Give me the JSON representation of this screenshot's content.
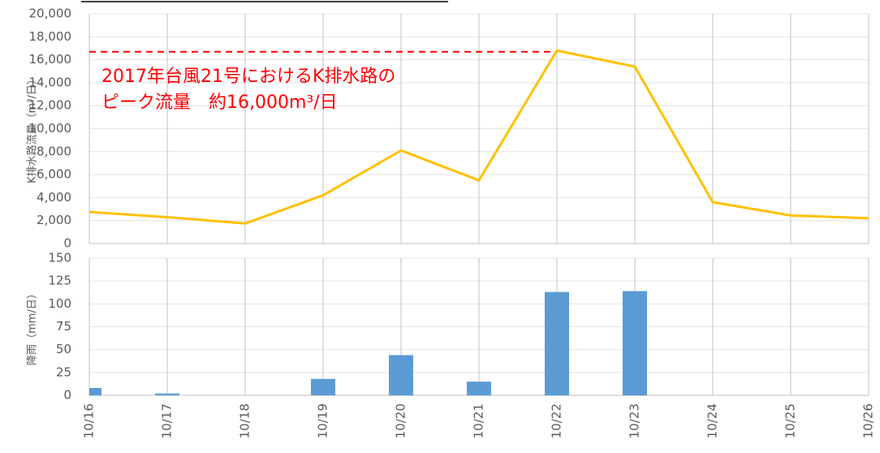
{
  "chart_data": [
    {
      "type": "line",
      "ylabel": "K排水路流量（m³/日）",
      "categories": [
        "10/16",
        "10/17",
        "10/18",
        "10/19",
        "10/20",
        "10/21",
        "10/22",
        "10/23",
        "10/24",
        "10/25",
        "10/26"
      ],
      "series": [
        {
          "color": "#ffc000",
          "values": [
            2750,
            2300,
            1750,
            4200,
            8100,
            5500,
            16800,
            15400,
            3600,
            2450,
            2200
          ]
        }
      ],
      "ylim": [
        0,
        20000
      ],
      "yticks": [
        0,
        {
          "value": 2000,
          "label": "2,000"
        },
        {
          "value": 4000,
          "label": "4,000"
        },
        {
          "value": 6000,
          "label": "6,000"
        },
        {
          "value": 8000,
          "label": "8,000"
        },
        {
          "value": 10000,
          "label": "10,000"
        },
        {
          "value": 12000,
          "label": "12,000"
        },
        {
          "value": 14000,
          "label": "14,000"
        },
        {
          "value": 16000,
          "label": "16,000"
        },
        {
          "value": 18000,
          "label": "18,000"
        },
        {
          "value": 20000,
          "label": "20,000"
        }
      ],
      "grid": true,
      "reference_line": {
        "value": 16700,
        "from": "10/16",
        "to": "10/22",
        "color": "#ff0000"
      },
      "annotation": [
        "2017年台風21号におけるK排水路の",
        "ピーク流量　約16,000m³/日"
      ],
      "annotation_color": "#ff0000"
    },
    {
      "type": "bar",
      "ylabel": "降雨（mm/日）",
      "categories": [
        "10/16",
        "10/17",
        "10/18",
        "10/19",
        "10/20",
        "10/21",
        "10/22",
        "10/23",
        "10/24",
        "10/25",
        "10/26"
      ],
      "values": [
        8,
        2,
        0,
        18,
        44,
        15,
        113,
        114,
        0,
        0,
        0
      ],
      "color": "#5b9bd5",
      "ylim": [
        0,
        150
      ],
      "yticks": [
        0,
        25,
        50,
        75,
        100,
        125,
        150
      ],
      "grid": true
    }
  ]
}
